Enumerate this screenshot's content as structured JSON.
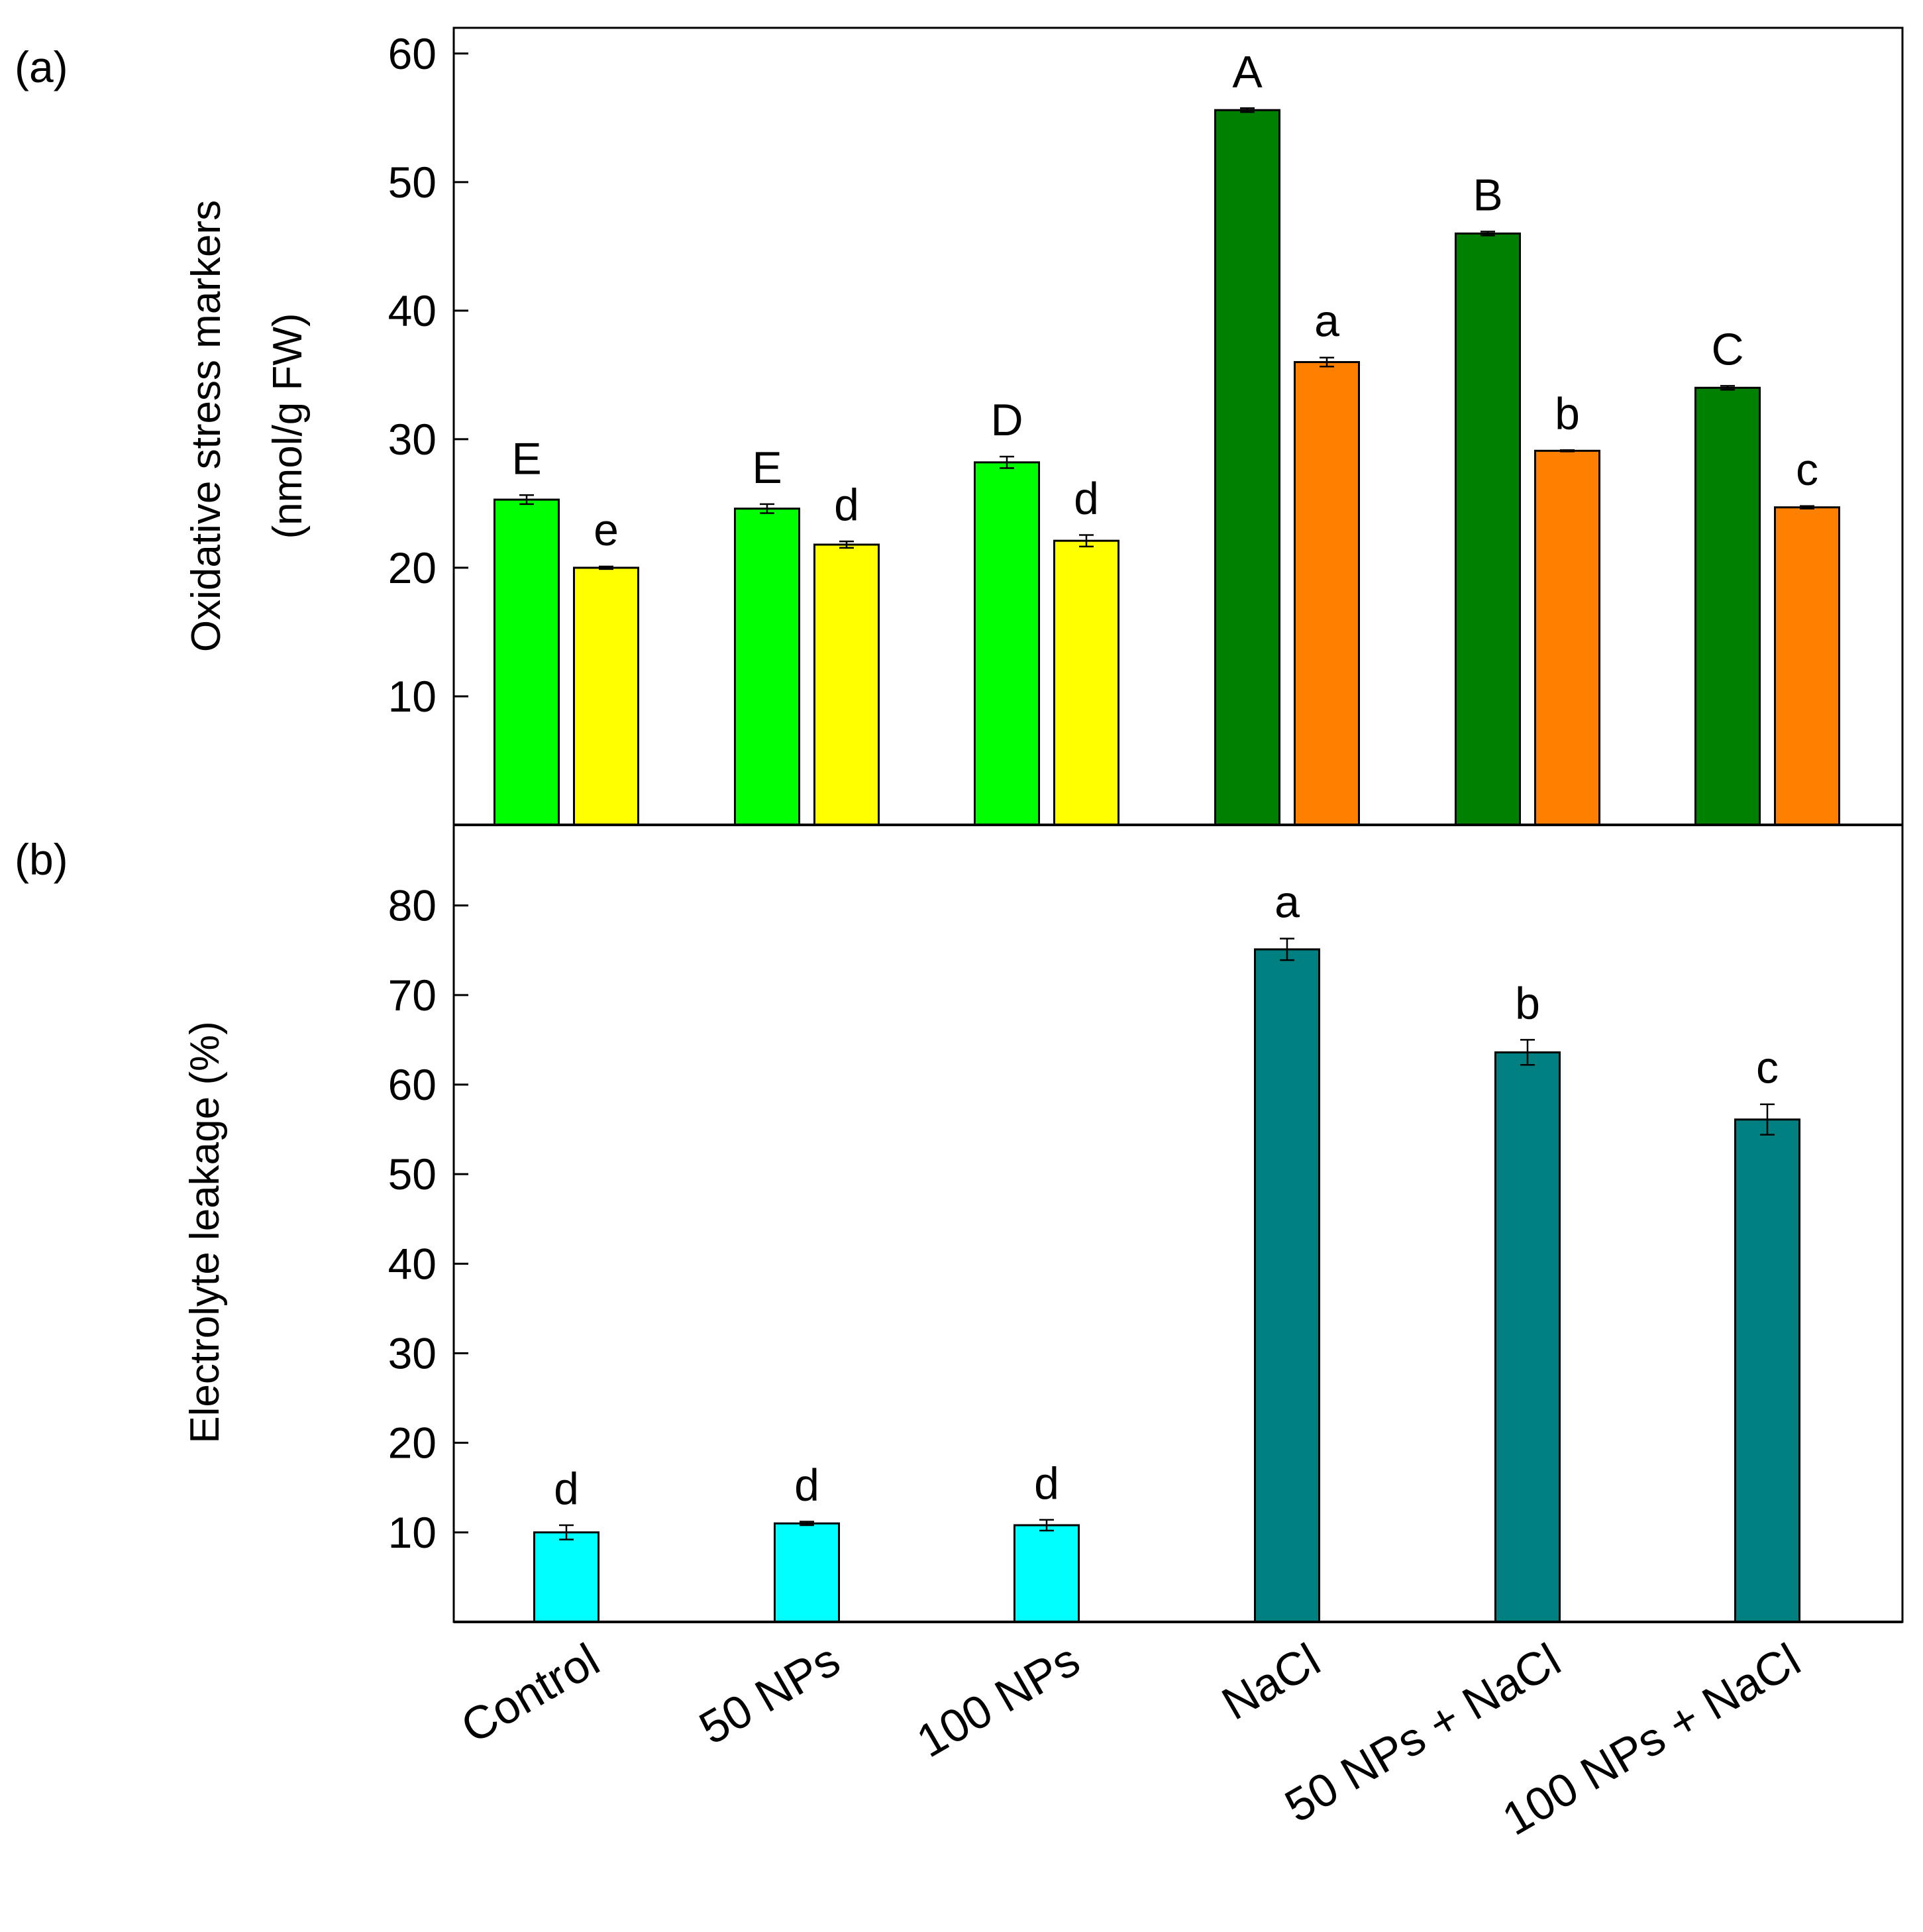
{
  "chart_data": [
    {
      "panel_label": "(a)",
      "type": "bar",
      "ylabel_line1": "Oxidative stress markers",
      "ylabel_line2": "(nmol/g FW)",
      "ylim": [
        0,
        62
      ],
      "yticks": [
        10,
        20,
        30,
        40,
        50,
        60
      ],
      "categories": [
        "Control",
        "50 NPs",
        "100 NPs",
        "NaCl",
        "50 NPs + NaCl",
        "100 NPs + NaCl"
      ],
      "series": [
        {
          "name": "series-1",
          "values": [
            25.3,
            24.6,
            28.2,
            55.6,
            46.0,
            34.0
          ],
          "errors": [
            0.35,
            0.35,
            0.45,
            0.15,
            0.15,
            0.15
          ],
          "labels": [
            "E",
            "E",
            "D",
            "A",
            "B",
            "C"
          ],
          "colors": [
            "#00ff00",
            "#00ff00",
            "#00ff00",
            "#008000",
            "#008000",
            "#008000"
          ]
        },
        {
          "name": "series-2",
          "values": [
            20.0,
            21.8,
            22.1,
            36.0,
            29.1,
            24.7
          ],
          "errors": [
            0.1,
            0.25,
            0.45,
            0.35,
            0.05,
            0.1
          ],
          "labels": [
            "e",
            "d",
            "d",
            "a",
            "b",
            "c"
          ],
          "colors": [
            "#ffff00",
            "#ffff00",
            "#ffff00",
            "#ff8000",
            "#ff8000",
            "#ff8000"
          ]
        }
      ]
    },
    {
      "panel_label": "(b)",
      "type": "bar",
      "ylabel": "Electrolyte leakage (%)",
      "ylim": [
        0,
        89
      ],
      "yticks": [
        10,
        20,
        30,
        40,
        50,
        60,
        70,
        80
      ],
      "categories": [
        "Control",
        "50 NPs",
        "100 NPs",
        "NaCl",
        "50 NPs + NaCl",
        "100 NPs + NaCl"
      ],
      "series": [
        {
          "name": "electrolyte-leakage",
          "values": [
            10.0,
            11.0,
            10.8,
            75.1,
            63.6,
            56.1
          ],
          "errors": [
            0.8,
            0.2,
            0.6,
            1.2,
            1.4,
            1.7
          ],
          "labels": [
            "d",
            "d",
            "d",
            "a",
            "b",
            "c"
          ],
          "colors": [
            "#00ffff",
            "#00ffff",
            "#00ffff",
            "#008080",
            "#008080",
            "#008080"
          ]
        }
      ]
    }
  ]
}
